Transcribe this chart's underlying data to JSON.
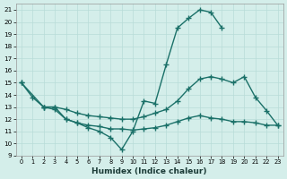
{
  "xlabel": "Humidex (Indice chaleur)",
  "xlim": [
    -0.5,
    23.5
  ],
  "ylim": [
    9,
    21.5
  ],
  "xticks": [
    0,
    1,
    2,
    3,
    4,
    5,
    6,
    7,
    8,
    9,
    10,
    11,
    12,
    13,
    14,
    15,
    16,
    17,
    18,
    19,
    20,
    21,
    22,
    23
  ],
  "yticks": [
    9,
    10,
    11,
    12,
    13,
    14,
    15,
    16,
    17,
    18,
    19,
    20,
    21
  ],
  "bg_color": "#d4eeea",
  "grid_color": "#b8dcd8",
  "line_color": "#1a7068",
  "line_width": 1.0,
  "marker": "+",
  "marker_size": 4,
  "curve1_x": [
    0,
    1,
    2,
    3,
    4,
    5,
    6,
    7,
    8,
    9,
    10,
    11,
    12,
    13,
    14,
    15,
    16,
    17,
    18
  ],
  "curve1_y": [
    15,
    13.8,
    13.0,
    13.0,
    12.0,
    11.7,
    11.3,
    11.0,
    10.5,
    9.5,
    11.0,
    13.5,
    13.3,
    16.5,
    19.5,
    20.3,
    21.0,
    20.8,
    19.5
  ],
  "curve2_x": [
    0,
    2,
    3,
    4,
    5,
    6,
    7,
    8,
    9,
    10,
    11,
    12,
    13,
    14,
    15,
    16,
    17,
    18,
    19,
    20,
    21,
    22,
    23
  ],
  "curve2_y": [
    15,
    13.0,
    13.0,
    12.8,
    12.5,
    12.3,
    12.2,
    12.1,
    12.0,
    12.0,
    12.2,
    12.5,
    12.8,
    13.5,
    14.5,
    15.3,
    15.5,
    15.3,
    15.0,
    15.5,
    13.8,
    12.7,
    11.5
  ],
  "curve3_x": [
    2,
    3,
    4,
    5,
    6,
    7,
    8,
    9,
    10,
    11,
    12,
    13,
    14,
    15,
    16,
    17,
    18,
    19,
    20,
    21,
    22,
    23
  ],
  "curve3_y": [
    13.0,
    12.8,
    12.0,
    11.7,
    11.5,
    11.4,
    11.2,
    11.2,
    11.1,
    11.2,
    11.3,
    11.5,
    11.8,
    12.1,
    12.3,
    12.1,
    12.0,
    11.8,
    11.8,
    11.7,
    11.5,
    11.5
  ]
}
